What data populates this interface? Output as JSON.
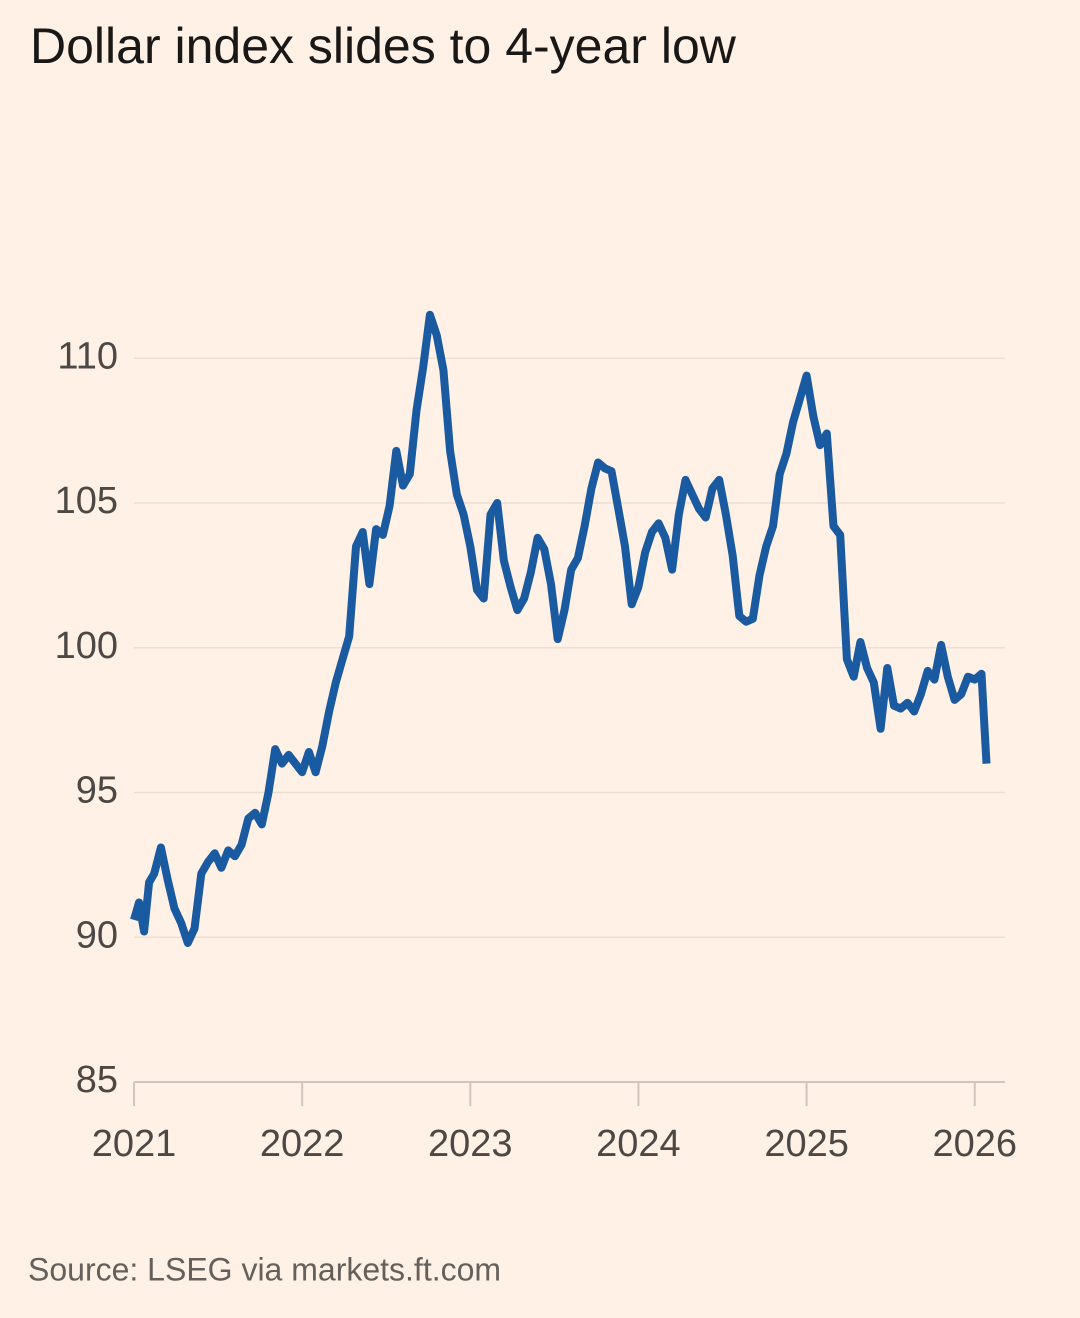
{
  "chart_data": {
    "type": "line",
    "title": "Dollar index slides to 4-year low",
    "source": "Source: LSEG via markets.ft.com",
    "color": "#1a5aa0",
    "grid": true,
    "xlim": [
      2021,
      2026.18
    ],
    "xticks": [
      2021,
      2022,
      2023,
      2024,
      2025,
      2026
    ],
    "ylim": [
      85,
      114.5
    ],
    "yticks": [
      85,
      90,
      95,
      100,
      105,
      110
    ],
    "x": [
      2021.0,
      2021.03,
      2021.06,
      2021.09,
      2021.12,
      2021.16,
      2021.2,
      2021.24,
      2021.28,
      2021.32,
      2021.36,
      2021.4,
      2021.44,
      2021.48,
      2021.52,
      2021.56,
      2021.6,
      2021.64,
      2021.68,
      2021.72,
      2021.76,
      2021.8,
      2021.84,
      2021.88,
      2021.92,
      2021.96,
      2022.0,
      2022.04,
      2022.08,
      2022.12,
      2022.16,
      2022.2,
      2022.24,
      2022.28,
      2022.32,
      2022.36,
      2022.4,
      2022.44,
      2022.48,
      2022.52,
      2022.56,
      2022.6,
      2022.64,
      2022.68,
      2022.72,
      2022.76,
      2022.8,
      2022.84,
      2022.88,
      2022.92,
      2022.96,
      2023.0,
      2023.04,
      2023.08,
      2023.12,
      2023.16,
      2023.2,
      2023.24,
      2023.28,
      2023.32,
      2023.36,
      2023.4,
      2023.44,
      2023.48,
      2023.52,
      2023.56,
      2023.6,
      2023.64,
      2023.68,
      2023.72,
      2023.76,
      2023.8,
      2023.84,
      2023.88,
      2023.92,
      2023.96,
      2024.0,
      2024.04,
      2024.08,
      2024.12,
      2024.16,
      2024.2,
      2024.24,
      2024.28,
      2024.32,
      2024.36,
      2024.4,
      2024.44,
      2024.48,
      2024.52,
      2024.56,
      2024.6,
      2024.64,
      2024.68,
      2024.72,
      2024.76,
      2024.8,
      2024.84,
      2024.88,
      2024.92,
      2024.96,
      2025.0,
      2025.04,
      2025.08,
      2025.12,
      2025.16,
      2025.2,
      2025.24,
      2025.28,
      2025.32,
      2025.36,
      2025.4,
      2025.44,
      2025.48,
      2025.52,
      2025.56,
      2025.6,
      2025.64,
      2025.68,
      2025.72,
      2025.76,
      2025.8,
      2025.84,
      2025.88,
      2025.92,
      2025.96,
      2026.0,
      2026.04,
      2026.07
    ],
    "values": [
      90.6,
      91.2,
      90.2,
      91.9,
      92.2,
      93.1,
      92.0,
      91.0,
      90.5,
      89.8,
      90.3,
      92.2,
      92.6,
      92.9,
      92.4,
      93.0,
      92.8,
      93.2,
      94.1,
      94.3,
      93.9,
      95.0,
      96.5,
      96.0,
      96.3,
      96.0,
      95.7,
      96.4,
      95.7,
      96.6,
      97.8,
      98.8,
      99.6,
      100.4,
      103.5,
      104.0,
      102.2,
      104.1,
      103.9,
      104.9,
      106.8,
      105.6,
      106.0,
      108.2,
      109.7,
      111.5,
      110.8,
      109.6,
      106.8,
      105.3,
      104.6,
      103.5,
      102.0,
      101.7,
      104.6,
      105.0,
      103.0,
      102.1,
      101.3,
      101.7,
      102.6,
      103.8,
      103.4,
      102.2,
      100.3,
      101.3,
      102.7,
      103.1,
      104.2,
      105.5,
      106.4,
      106.2,
      106.1,
      104.8,
      103.5,
      101.5,
      102.1,
      103.3,
      104.0,
      104.3,
      103.8,
      102.7,
      104.6,
      105.8,
      105.3,
      104.8,
      104.5,
      105.5,
      105.8,
      104.6,
      103.2,
      101.1,
      100.9,
      101.0,
      102.5,
      103.5,
      104.2,
      106.0,
      106.7,
      107.8,
      108.6,
      109.4,
      108.0,
      107.0,
      107.4,
      104.2,
      103.9,
      99.6,
      99.0,
      100.2,
      99.3,
      98.8,
      97.2,
      99.3,
      98.0,
      97.9,
      98.1,
      97.8,
      98.4,
      99.2,
      98.9,
      100.1,
      99.0,
      98.2,
      98.4,
      99.0,
      98.9,
      99.1,
      96.0
    ]
  }
}
